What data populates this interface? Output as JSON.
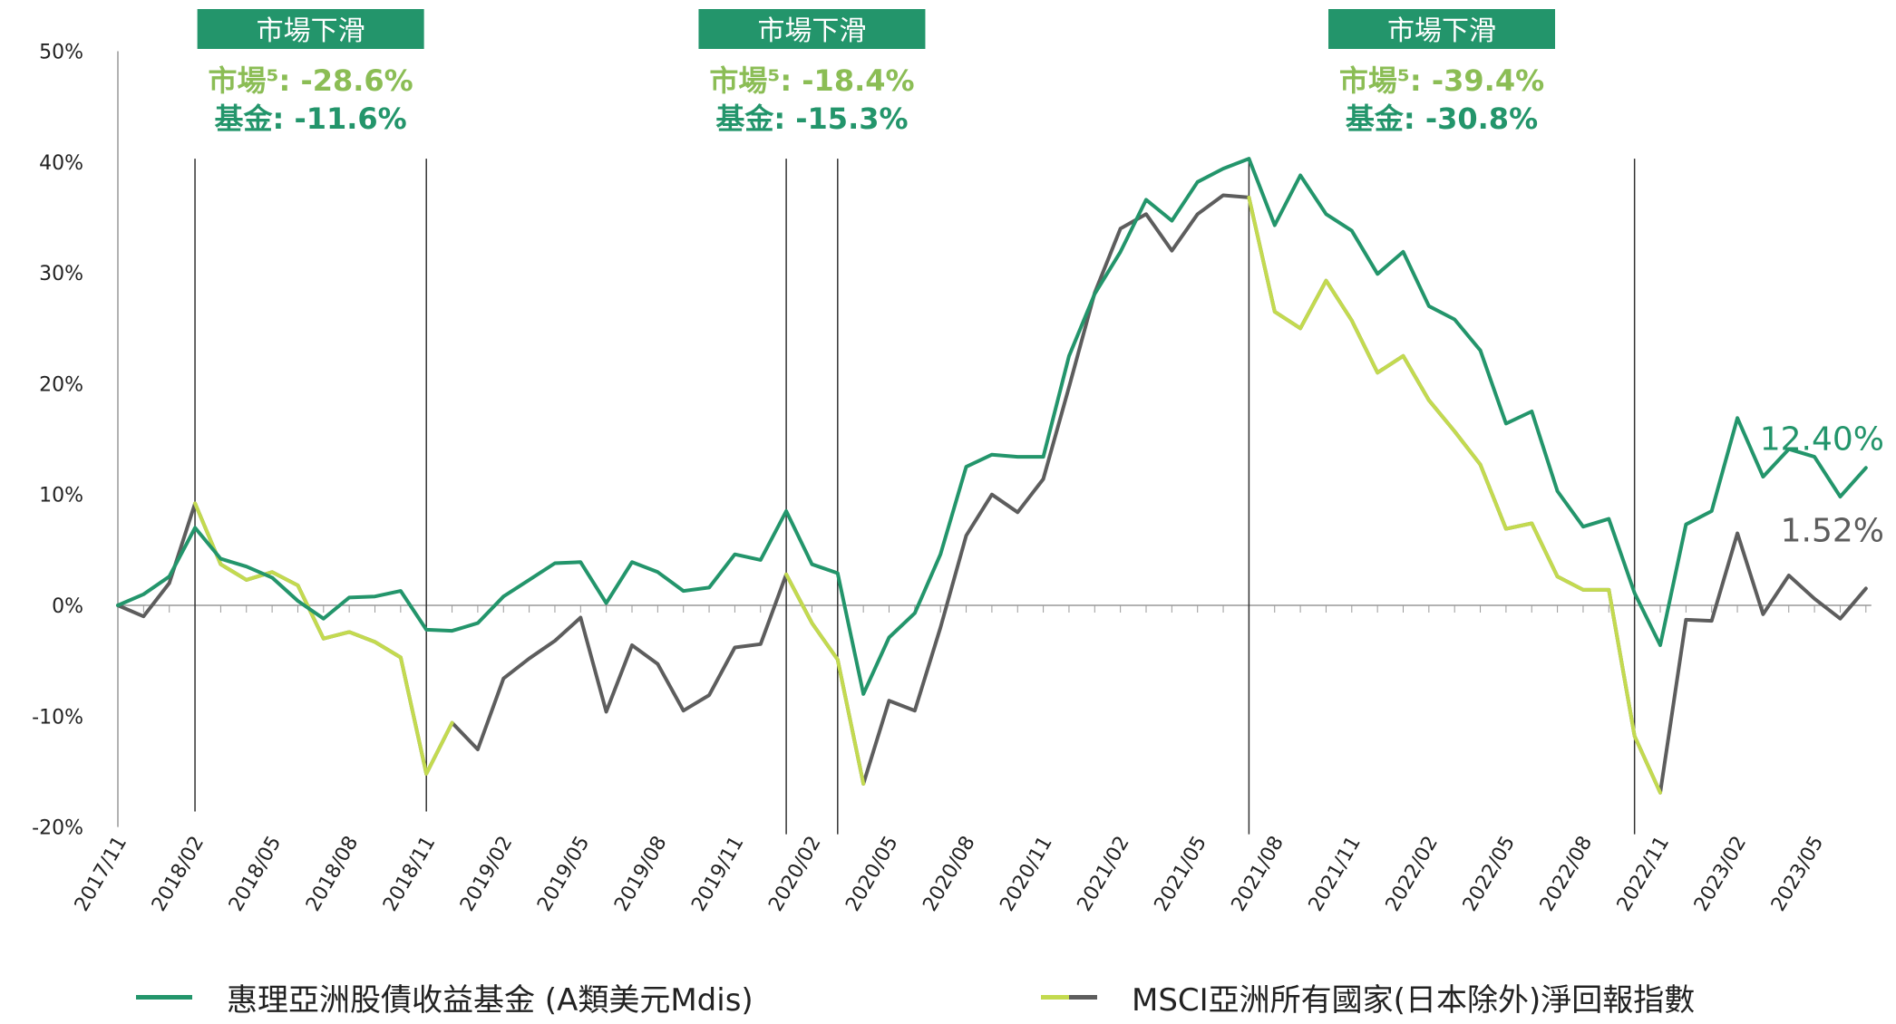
{
  "chart_data": {
    "type": "line",
    "x": [
      "2017/11",
      "2017/12",
      "2018/01",
      "2018/02",
      "2018/03",
      "2018/04",
      "2018/05",
      "2018/06",
      "2018/07",
      "2018/08",
      "2018/09",
      "2018/10",
      "2018/11",
      "2018/12",
      "2019/01",
      "2019/02",
      "2019/03",
      "2019/04",
      "2019/05",
      "2019/06",
      "2019/07",
      "2019/08",
      "2019/09",
      "2019/10",
      "2019/11",
      "2019/12",
      "2020/01",
      "2020/02",
      "2020/03",
      "2020/04",
      "2020/05",
      "2020/06",
      "2020/07",
      "2020/08",
      "2020/09",
      "2020/10",
      "2020/11",
      "2020/12",
      "2021/01",
      "2021/02",
      "2021/03",
      "2021/04",
      "2021/05",
      "2021/06",
      "2021/07",
      "2021/08",
      "2021/09",
      "2021/10",
      "2021/11",
      "2021/12",
      "2022/01",
      "2022/02",
      "2022/03",
      "2022/04",
      "2022/05",
      "2022/06",
      "2022/07",
      "2022/08",
      "2022/09",
      "2022/10",
      "2022/11",
      "2022/12",
      "2023/01",
      "2023/02",
      "2023/03",
      "2023/04",
      "2023/05",
      "2023/06",
      "2023/07"
    ],
    "x_tick_labels": [
      "2017/11",
      "2018/02",
      "2018/05",
      "2018/08",
      "2018/11",
      "2019/02",
      "2019/05",
      "2019/08",
      "2019/11",
      "2020/02",
      "2020/05",
      "2020/08",
      "2020/11",
      "2021/02",
      "2021/05",
      "2021/08",
      "2021/11",
      "2022/02",
      "2022/05",
      "2022/08",
      "2022/11",
      "2023/02",
      "2023/05"
    ],
    "y_tick_labels": [
      "50%",
      "40%",
      "30%",
      "20%",
      "10%",
      "0%",
      "-10%",
      "-20%"
    ],
    "ylim": [
      -20,
      50
    ],
    "series": [
      {
        "name": "惠理亞洲股債收益基金 (A類美元Mdis)",
        "color": "#23956b",
        "values": [
          0.0,
          1.0,
          2.6,
          7.0,
          4.2,
          3.5,
          2.5,
          0.4,
          -1.2,
          0.7,
          0.8,
          1.3,
          -2.2,
          -2.3,
          -1.6,
          0.8,
          2.3,
          3.8,
          3.9,
          0.2,
          3.9,
          3.0,
          1.3,
          1.6,
          4.6,
          4.1,
          8.5,
          3.7,
          2.9,
          -8.0,
          -2.9,
          -0.7,
          4.6,
          12.5,
          13.6,
          13.4,
          13.4,
          22.5,
          28.1,
          31.9,
          36.6,
          34.7,
          38.2,
          39.4,
          40.3,
          34.3,
          38.8,
          35.3,
          33.8,
          29.9,
          31.9,
          27.0,
          25.8,
          23.0,
          16.4,
          17.5,
          10.3,
          7.1,
          7.8,
          1.1,
          -3.6,
          7.3,
          8.5,
          16.9,
          11.6,
          14.1,
          13.4,
          9.8,
          12.4
        ]
      },
      {
        "name": "MSCI亞洲所有國家(日本除外)淨回報指數",
        "color": "#c3da4f",
        "values": [
          0.0,
          -1.0,
          2.0,
          9.2,
          3.7,
          2.3,
          3.0,
          1.8,
          -3.0,
          -2.4,
          -3.3,
          -4.7,
          -15.2,
          -10.6,
          -13.0,
          -6.6,
          -4.8,
          -3.2,
          -1.1,
          -9.6,
          -3.6,
          -5.3,
          -9.5,
          -8.1,
          -3.8,
          -3.5,
          2.8,
          -1.6,
          -4.9,
          -16.1,
          -8.6,
          -9.5,
          -2.0,
          6.3,
          10.0,
          8.4,
          11.4,
          19.7,
          28.2,
          34.0,
          35.3,
          32.0,
          35.3,
          37.0,
          36.8,
          26.5,
          25.0,
          29.3,
          25.7,
          21.0,
          22.5,
          18.5,
          15.7,
          12.7,
          6.9,
          7.4,
          2.6,
          1.4,
          1.4,
          -11.8,
          -16.9,
          -1.3,
          -1.4,
          6.5,
          -0.8,
          2.7,
          0.6,
          -1.2,
          1.52
        ]
      }
    ],
    "end_labels": [
      "12.40%",
      "1.52%"
    ],
    "drawdowns": [
      {
        "from": "2018/02",
        "to": "2018/11",
        "title": "市場下滑",
        "market": "市場⁵: -28.6%",
        "fund": "基金: -11.6%"
      },
      {
        "from": "2020/01",
        "to": "2020/03",
        "title": "市場下滑",
        "market": "市場⁵: -18.4%",
        "fund": "基金: -15.3%"
      },
      {
        "from": "2021/07",
        "to": "2022/10",
        "title": "市場下滑",
        "market": "市場⁵: -39.4%",
        "fund": "基金: -30.8%"
      }
    ],
    "grid": false,
    "legend_position": "bottom"
  }
}
